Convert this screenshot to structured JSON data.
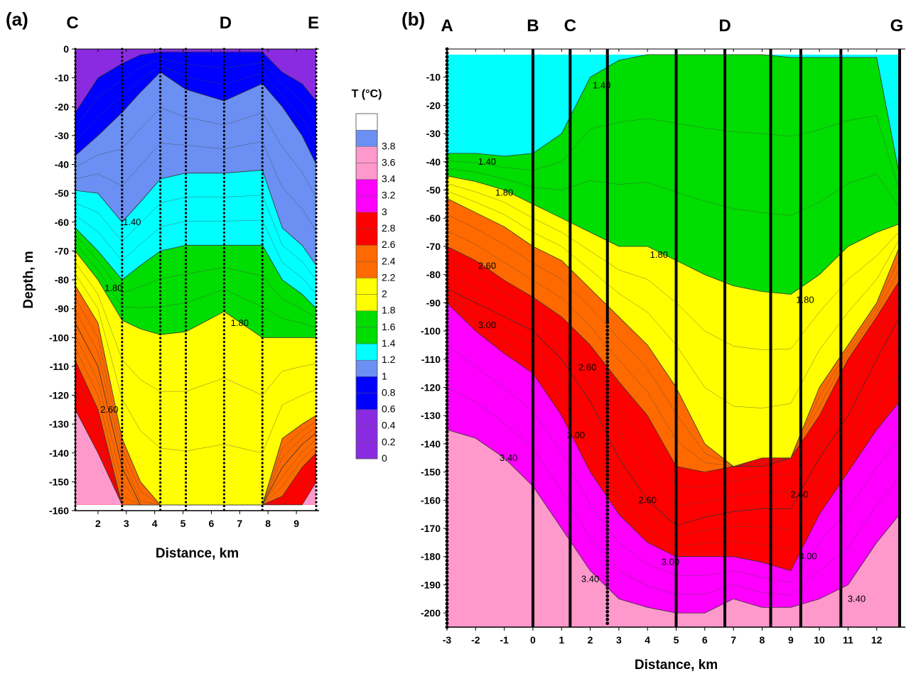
{
  "chart_data": [
    {
      "type": "heatmap",
      "panel_label": "(a)",
      "xlabel": "Distance, km",
      "ylabel": "Depth, m",
      "xlim": [
        1.2,
        9.8
      ],
      "ylim": [
        -160,
        0
      ],
      "xticks": [
        2,
        3,
        4,
        5,
        6,
        7,
        8,
        9
      ],
      "yticks": [
        0,
        -10,
        -20,
        -30,
        -40,
        -50,
        -60,
        -70,
        -80,
        -90,
        -100,
        -110,
        -120,
        -130,
        -140,
        -150,
        -160
      ],
      "station_labels": [
        {
          "label": "C",
          "x": 1.2
        },
        {
          "label": "D",
          "x": 6.5
        },
        {
          "label": "E",
          "x": 9.6
        }
      ],
      "profile_lines": [
        {
          "x": 1.2,
          "style": "dotted"
        },
        {
          "x": 2.85,
          "style": "dotted"
        },
        {
          "x": 4.2,
          "style": "dotted"
        },
        {
          "x": 5.1,
          "style": "dotted"
        },
        {
          "x": 6.45,
          "style": "dotted"
        },
        {
          "x": 7.8,
          "style": "dotted"
        },
        {
          "x": 9.7,
          "style": "dotted"
        }
      ],
      "x_nodes": [
        1.2,
        2.0,
        2.85,
        3.5,
        4.2,
        5.1,
        6.45,
        7.8,
        8.5,
        9.2,
        9.7
      ],
      "isotherms": [
        {
          "t": 0.6,
          "depths": [
            -22,
            -10,
            -5,
            -2,
            -1,
            -1,
            -1,
            -1,
            -8,
            -12,
            -18
          ]
        },
        {
          "t": 1.0,
          "depths": [
            -37,
            -30,
            -22,
            -15,
            -8,
            -14,
            -18,
            -12,
            -20,
            -30,
            -40
          ]
        },
        {
          "t": 1.2,
          "depths": [
            -49,
            -50,
            -60,
            -53,
            -45,
            -43,
            -43,
            -42,
            -62,
            -68,
            -75
          ]
        },
        {
          "t": 1.4,
          "depths": [
            -62,
            -70,
            -80,
            -75,
            -70,
            -68,
            -68,
            -68,
            -80,
            -85,
            -90
          ]
        },
        {
          "t": 1.8,
          "depths": [
            -70,
            -80,
            -94,
            -97,
            -99,
            -98,
            -91,
            -100,
            -100,
            -100,
            -100
          ]
        },
        {
          "t": 2.2,
          "depths": [
            -82,
            -95,
            -135,
            -150,
            -158,
            -160,
            -160,
            -160,
            -135,
            -130,
            -127
          ]
        },
        {
          "t": 2.4,
          "depths": [
            -95,
            -110,
            -145,
            -160,
            -160,
            -160,
            -160,
            -160,
            -145,
            -137,
            -133
          ]
        },
        {
          "t": 2.8,
          "depths": [
            -108,
            -125,
            -160,
            -160,
            -160,
            -160,
            -160,
            -160,
            -155,
            -145,
            -140
          ]
        },
        {
          "t": 3.4,
          "depths": [
            -125,
            -140,
            -160,
            -160,
            -160,
            -160,
            -160,
            -160,
            -160,
            -158,
            -150
          ]
        }
      ],
      "contour_labels": [
        {
          "text": "1.40",
          "x": 3.2,
          "y": -60
        },
        {
          "text": "1.80",
          "x": 2.55,
          "y": -83
        },
        {
          "text": "1.80",
          "x": 7.0,
          "y": -95
        },
        {
          "text": "2.60",
          "x": 2.4,
          "y": -125
        }
      ]
    },
    {
      "type": "heatmap",
      "panel_label": "(b)",
      "xlabel": "Distance, km",
      "ylabel": "",
      "xlim": [
        -3,
        13
      ],
      "ylim": [
        -205,
        0
      ],
      "xticks": [
        -3,
        -2,
        -1,
        0,
        1,
        2,
        3,
        4,
        5,
        6,
        7,
        8,
        9,
        10,
        11,
        12
      ],
      "yticks": [
        -10,
        -20,
        -30,
        -40,
        -50,
        -60,
        -70,
        -80,
        -90,
        -100,
        -110,
        -120,
        -130,
        -140,
        -150,
        -160,
        -170,
        -180,
        -190,
        -200
      ],
      "station_labels": [
        {
          "label": "A",
          "x": -3
        },
        {
          "label": "B",
          "x": 0
        },
        {
          "label": "C",
          "x": 1.3
        },
        {
          "label": "D",
          "x": 6.7
        },
        {
          "label": "G",
          "x": 12.7
        }
      ],
      "profile_lines": [
        {
          "x": -3,
          "style": "dotted"
        },
        {
          "x": 0,
          "style": "solid"
        },
        {
          "x": 1.3,
          "style": "solid"
        },
        {
          "x": 2.6,
          "style": "dotted-lower"
        },
        {
          "x": 5.0,
          "style": "solid"
        },
        {
          "x": 6.7,
          "style": "solid"
        },
        {
          "x": 8.3,
          "style": "solid"
        },
        {
          "x": 9.35,
          "style": "solid"
        },
        {
          "x": 10.75,
          "style": "solid"
        },
        {
          "x": 12.8,
          "style": "solid"
        }
      ],
      "x_nodes": [
        -3,
        -2,
        -1,
        0,
        1,
        2,
        3,
        4,
        5,
        6,
        7,
        8,
        9,
        10,
        11,
        12,
        12.8
      ],
      "isotherms": [
        {
          "t": 1.4,
          "depths": [
            -37,
            -37,
            -38,
            -37,
            -30,
            -10,
            -4,
            -2,
            -2,
            -2,
            -2,
            -2,
            -3,
            -3,
            -3,
            -3,
            -45
          ]
        },
        {
          "t": 1.8,
          "depths": [
            -45,
            -47,
            -50,
            -55,
            -60,
            -65,
            -70,
            -70,
            -75,
            -80,
            -84,
            -86,
            -87,
            -80,
            -70,
            -65,
            -62
          ]
        },
        {
          "t": 2.2,
          "depths": [
            -53,
            -58,
            -63,
            -70,
            -75,
            -85,
            -95,
            -105,
            -120,
            -140,
            -148,
            -148,
            -145,
            -120,
            -105,
            -90,
            -70
          ]
        },
        {
          "t": 2.6,
          "depths": [
            -70,
            -75,
            -82,
            -88,
            -95,
            -105,
            -118,
            -130,
            -148,
            -150,
            -148,
            -145,
            -145,
            -130,
            -110,
            -95,
            -82
          ]
        },
        {
          "t": 2.8,
          "depths": [
            -85,
            -90,
            -95,
            -100,
            -110,
            -125,
            -145,
            -160,
            -169,
            -166,
            -164,
            -163,
            -163,
            -145,
            -130,
            -110,
            -95
          ]
        },
        {
          "t": 3.0,
          "depths": [
            -90,
            -100,
            -108,
            -115,
            -130,
            -150,
            -165,
            -175,
            -180,
            -180,
            -180,
            -182,
            -185,
            -165,
            -150,
            -135,
            -125
          ]
        },
        {
          "t": 3.4,
          "depths": [
            -135,
            -138,
            -145,
            -155,
            -170,
            -185,
            -195,
            -198,
            -200,
            -200,
            -195,
            -198,
            -198,
            -195,
            -190,
            -175,
            -165
          ]
        }
      ],
      "contour_labels": [
        {
          "text": "1.40",
          "x": 2.4,
          "y": -13
        },
        {
          "text": "1.40",
          "x": -1.6,
          "y": -40
        },
        {
          "text": "1.80",
          "x": -1.0,
          "y": -51
        },
        {
          "text": "1.80",
          "x": 4.4,
          "y": -73
        },
        {
          "text": "1.80",
          "x": 9.5,
          "y": -89
        },
        {
          "text": "2.60",
          "x": -1.6,
          "y": -77
        },
        {
          "text": "3.00",
          "x": -1.6,
          "y": -98
        },
        {
          "text": "2.60",
          "x": 1.9,
          "y": -113
        },
        {
          "text": "3.00",
          "x": 1.5,
          "y": -137
        },
        {
          "text": "3.40",
          "x": -0.85,
          "y": -145
        },
        {
          "text": "2.60",
          "x": 4.0,
          "y": -160
        },
        {
          "text": "3.00",
          "x": 4.8,
          "y": -182
        },
        {
          "text": "3.40",
          "x": 2.0,
          "y": -188
        },
        {
          "text": "2.60",
          "x": 9.3,
          "y": -158
        },
        {
          "text": "3.00",
          "x": 9.6,
          "y": -180
        },
        {
          "text": "3.40",
          "x": 11.3,
          "y": -195
        }
      ]
    }
  ],
  "legend": {
    "title": "T (°C)",
    "labels": [
      "0",
      "0.2",
      "0.4",
      "0.6",
      "0.8",
      "1",
      "1.2",
      "1.4",
      "1.6",
      "1.8",
      "2",
      "2.2",
      "2.4",
      "2.6",
      "2.8",
      "3",
      "3.2",
      "3.4",
      "3.6",
      "3.8"
    ],
    "bins": [
      {
        "from": 0.0,
        "to": 0.2,
        "color": "#8a2be2"
      },
      {
        "from": 0.2,
        "to": 0.4,
        "color": "#8a2be2"
      },
      {
        "from": 0.4,
        "to": 0.6,
        "color": "#8a2be2"
      },
      {
        "from": 0.6,
        "to": 0.8,
        "color": "#0000ff"
      },
      {
        "from": 0.8,
        "to": 1.0,
        "color": "#0000ff"
      },
      {
        "from": 1.0,
        "to": 1.2,
        "color": "#6b8ff2"
      },
      {
        "from": 1.2,
        "to": 1.4,
        "color": "#00ffff"
      },
      {
        "from": 1.4,
        "to": 1.6,
        "color": "#00dd00"
      },
      {
        "from": 1.6,
        "to": 1.8,
        "color": "#00dd00"
      },
      {
        "from": 1.8,
        "to": 2.0,
        "color": "#ffff00"
      },
      {
        "from": 2.0,
        "to": 2.2,
        "color": "#ffff00"
      },
      {
        "from": 2.2,
        "to": 2.4,
        "color": "#ff6a00"
      },
      {
        "from": 2.4,
        "to": 2.6,
        "color": "#ff6a00"
      },
      {
        "from": 2.6,
        "to": 2.8,
        "color": "#ff0000"
      },
      {
        "from": 2.8,
        "to": 3.0,
        "color": "#ff0000"
      },
      {
        "from": 3.0,
        "to": 3.2,
        "color": "#ff00ff"
      },
      {
        "from": 3.2,
        "to": 3.4,
        "color": "#ff00ff"
      },
      {
        "from": 3.4,
        "to": 3.6,
        "color": "#ff99cc"
      },
      {
        "from": 3.6,
        "to": 3.8,
        "color": "#ff99cc"
      },
      {
        "from": 3.8,
        "to": 4.0,
        "color": "#6b8ff2"
      },
      {
        "from": 4.0,
        "to": 4.2,
        "color": "#ffffff"
      }
    ]
  }
}
